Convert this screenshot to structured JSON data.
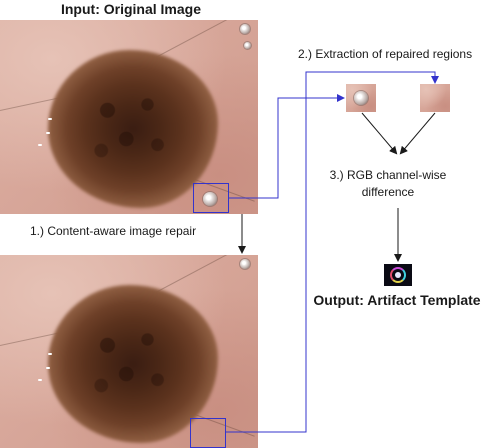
{
  "title_input": "Input: Original Image",
  "step1_label": "1.) Content-aware image repair",
  "step2_label": "2.) Extraction of repaired regions",
  "step3_label_line1": "3.) RGB channel-wise",
  "step3_label_line2": "difference",
  "output_title": "Output: Artifact Template",
  "colors": {
    "connector_blue": "#3333cc",
    "arrow_black": "#1a1a1a",
    "skin": "#d7a699",
    "lesion": "#4a2716"
  }
}
